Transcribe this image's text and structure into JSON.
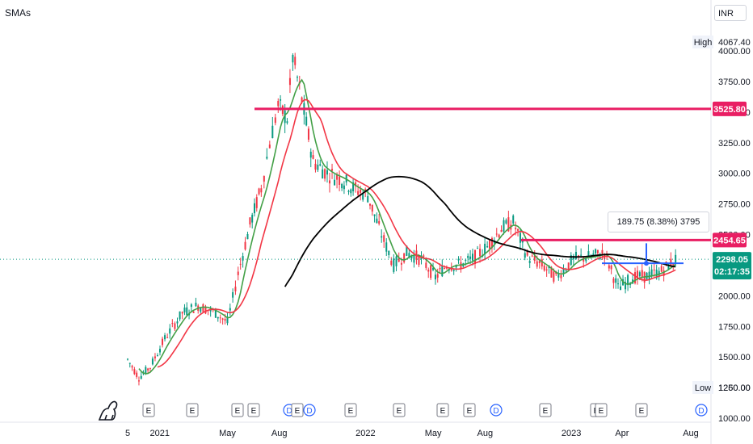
{
  "indicator_label": "SMAs",
  "currency": "INR",
  "measure_label": "189.75 (8.38%) 3795",
  "high_label": "High",
  "high_value": "4067.40",
  "low_label": "Low",
  "low_value": "1260.00",
  "price_badges": [
    {
      "value": "3525.80",
      "color": "#e91e63"
    },
    {
      "value": "2454.65",
      "color": "#e91e63"
    }
  ],
  "last_price": {
    "value": "2298.05",
    "countdown": "02:17:35",
    "color": "#089981"
  },
  "y_ticks": [
    "4000.00",
    "3750.00",
    "3500.00",
    "3250.00",
    "3000.00",
    "2750.00",
    "2500.00",
    "2250.00",
    "2000.00",
    "1750.00",
    "1500.00",
    "1250.00",
    "1000.00"
  ],
  "x_ticks": [
    "5",
    "2021",
    "May",
    "Aug",
    "2022",
    "May",
    "Aug",
    "2023",
    "Apr",
    "Aug"
  ],
  "events": [
    {
      "label": "E",
      "type": "earnings"
    },
    {
      "label": "E",
      "type": "earnings"
    },
    {
      "label": "E",
      "type": "earnings"
    },
    {
      "label": "E",
      "type": "earnings"
    },
    {
      "label": "D",
      "type": "dividend"
    },
    {
      "label": "E",
      "type": "earnings"
    },
    {
      "label": "D",
      "type": "dividend"
    },
    {
      "label": "E",
      "type": "earnings"
    },
    {
      "label": "E",
      "type": "earnings"
    },
    {
      "label": "E",
      "type": "earnings"
    },
    {
      "label": "E",
      "type": "earnings"
    },
    {
      "label": "D",
      "type": "dividend"
    },
    {
      "label": "E",
      "type": "earnings"
    },
    {
      "label": "E",
      "type": "earnings"
    },
    {
      "label": "E",
      "type": "earnings"
    },
    {
      "label": "E",
      "type": "earnings"
    },
    {
      "label": "D",
      "type": "dividend"
    }
  ],
  "colors": {
    "sma_short": "#43a047",
    "sma_mid": "#f23645",
    "sma_long": "#000000",
    "candle_up": "#089981",
    "candle_down": "#f23645",
    "hline": "#e91e63",
    "measure": "#2962ff"
  },
  "chart_data": {
    "type": "line",
    "title": "",
    "ylim": [
      1000,
      4100
    ],
    "y_scale": "linear",
    "grid": false,
    "horizontal_lines": [
      3525.8,
      2454.65
    ],
    "last_price": 2298.05,
    "period_high": 4067.4,
    "period_low": 1260.0,
    "series": [
      {
        "name": "Price",
        "x": [
          "2020-11-05",
          "2020-11-25",
          "2020-12-15",
          "2021-01-10",
          "2021-02-10",
          "2021-03-10",
          "2021-04-10",
          "2021-05-01",
          "2021-05-20",
          "2021-06-10",
          "2021-06-30",
          "2021-07-15",
          "2021-07-30",
          "2021-08-15",
          "2021-08-25",
          "2021-09-10",
          "2021-09-30",
          "2021-10-25",
          "2021-11-20",
          "2021-12-10",
          "2022-01-05",
          "2022-01-25",
          "2022-02-20",
          "2022-03-15",
          "2022-04-10",
          "2022-05-05",
          "2022-05-25",
          "2022-06-15",
          "2022-07-10",
          "2022-08-05",
          "2022-08-30",
          "2022-09-20",
          "2022-10-15",
          "2022-11-10",
          "2022-12-05",
          "2023-01-05",
          "2023-02-05",
          "2023-03-01",
          "2023-03-25",
          "2023-04-20",
          "2023-05-15",
          "2023-06-10",
          "2023-07-05"
        ],
        "values": [
          1480,
          1330,
          1420,
          1650,
          1860,
          1920,
          1860,
          1780,
          2180,
          2580,
          2880,
          3250,
          3550,
          3450,
          3950,
          3600,
          3100,
          3000,
          2950,
          2880,
          2820,
          2550,
          2250,
          2350,
          2300,
          2150,
          2250,
          2250,
          2300,
          2400,
          2550,
          2600,
          2320,
          2250,
          2150,
          2300,
          2320,
          2350,
          2060,
          2150,
          2160,
          2200,
          2298
        ]
      }
    ]
  }
}
